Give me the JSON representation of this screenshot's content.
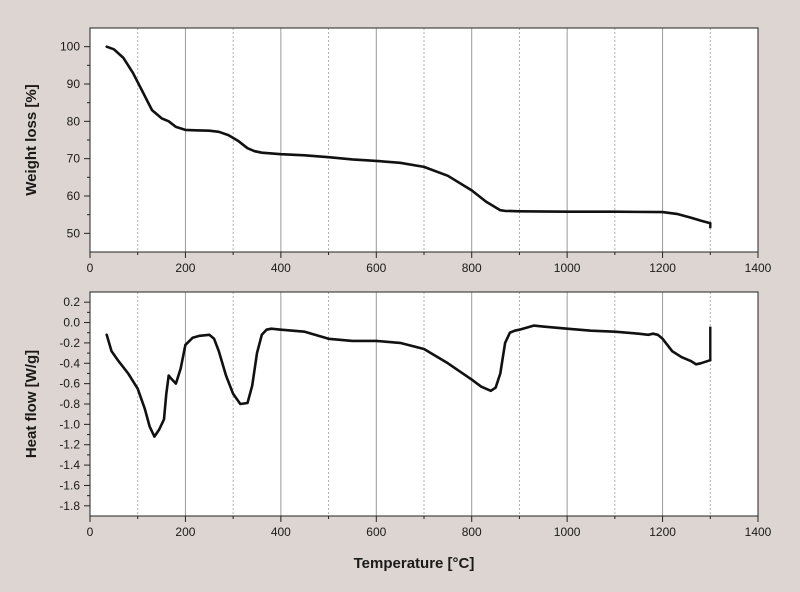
{
  "chart_data": [
    {
      "type": "line",
      "title": "",
      "xlabel": "",
      "ylabel": "Weight loss [%]",
      "xlim": [
        0,
        1400
      ],
      "ylim": [
        45,
        105
      ],
      "x_ticks": [
        0,
        200,
        400,
        600,
        800,
        1000,
        1200,
        1400
      ],
      "y_ticks": [
        50,
        60,
        70,
        80,
        90,
        100
      ],
      "x_tick_labels": [
        "0",
        "200",
        "400",
        "600",
        "800",
        "1000",
        "1200",
        "1400"
      ],
      "y_tick_labels": [
        "50",
        "60",
        "70",
        "80",
        "90",
        "100"
      ],
      "grid": {
        "solid_every": 200,
        "dotted_every": 100
      },
      "series": [
        {
          "color": "#111111",
          "x": [
            35,
            50,
            70,
            90,
            110,
            130,
            150,
            165,
            180,
            200,
            220,
            250,
            270,
            290,
            310,
            330,
            345,
            360,
            400,
            450,
            500,
            550,
            600,
            650,
            700,
            750,
            800,
            830,
            860,
            870,
            900,
            1000,
            1100,
            1200,
            1230,
            1260,
            1280,
            1300
          ],
          "y": [
            100,
            99.3,
            97,
            93,
            88,
            83,
            80.8,
            80,
            78.5,
            77.7,
            77.6,
            77.5,
            77.2,
            76.3,
            74.8,
            72.8,
            72,
            71.6,
            71.2,
            70.9,
            70.4,
            69.8,
            69.4,
            68.9,
            67.8,
            65.4,
            61.5,
            58.5,
            56.2,
            56,
            55.9,
            55.8,
            55.8,
            55.7,
            55.2,
            54.2,
            53.4,
            52.7
          ]
        }
      ]
    },
    {
      "type": "line",
      "title": "",
      "xlabel": "Temperature [°C]",
      "ylabel": "Heat flow [W/g]",
      "xlim": [
        0,
        1400
      ],
      "ylim": [
        -1.9,
        0.3
      ],
      "x_ticks": [
        0,
        200,
        400,
        600,
        800,
        1000,
        1200,
        1400
      ],
      "y_ticks": [
        0.2,
        0.0,
        -0.2,
        -0.4,
        -0.6,
        -0.8,
        -1.0,
        -1.2,
        -1.4,
        -1.6,
        -1.8
      ],
      "x_tick_labels": [
        "0",
        "200",
        "400",
        "600",
        "800",
        "1000",
        "1200",
        "1400"
      ],
      "y_tick_labels": [
        "0.2",
        "0.0",
        "-0.2",
        "-0.4",
        "-0.6",
        "-0.8",
        "-1.0",
        "-1.2",
        "-1.4",
        "-1.6",
        "-1.8"
      ],
      "grid": {
        "solid_every": 200,
        "dotted_every": 100
      },
      "series": [
        {
          "color": "#111111",
          "x": [
            35,
            45,
            60,
            80,
            100,
            115,
            125,
            135,
            145,
            155,
            160,
            165,
            170,
            180,
            190,
            200,
            215,
            230,
            250,
            260,
            270,
            285,
            300,
            315,
            330,
            340,
            350,
            360,
            370,
            380,
            400,
            450,
            500,
            550,
            600,
            650,
            700,
            750,
            800,
            820,
            840,
            850,
            860,
            870,
            880,
            890,
            900,
            930,
            950,
            1000,
            1050,
            1100,
            1150,
            1170,
            1180,
            1190,
            1200,
            1220,
            1240,
            1260,
            1270,
            1280,
            1300
          ],
          "y": [
            -0.12,
            -0.28,
            -0.38,
            -0.5,
            -0.65,
            -0.85,
            -1.02,
            -1.12,
            -1.05,
            -0.95,
            -0.7,
            -0.52,
            -0.55,
            -0.6,
            -0.45,
            -0.22,
            -0.15,
            -0.13,
            -0.12,
            -0.16,
            -0.28,
            -0.52,
            -0.7,
            -0.8,
            -0.79,
            -0.62,
            -0.3,
            -0.12,
            -0.07,
            -0.06,
            -0.07,
            -0.09,
            -0.16,
            -0.18,
            -0.18,
            -0.2,
            -0.26,
            -0.4,
            -0.56,
            -0.63,
            -0.67,
            -0.64,
            -0.5,
            -0.2,
            -0.1,
            -0.08,
            -0.07,
            -0.03,
            -0.04,
            -0.06,
            -0.08,
            -0.09,
            -0.11,
            -0.12,
            -0.11,
            -0.12,
            -0.16,
            -0.28,
            -0.34,
            -0.38,
            -0.41,
            -0.4,
            -0.37
          ]
        }
      ]
    }
  ]
}
